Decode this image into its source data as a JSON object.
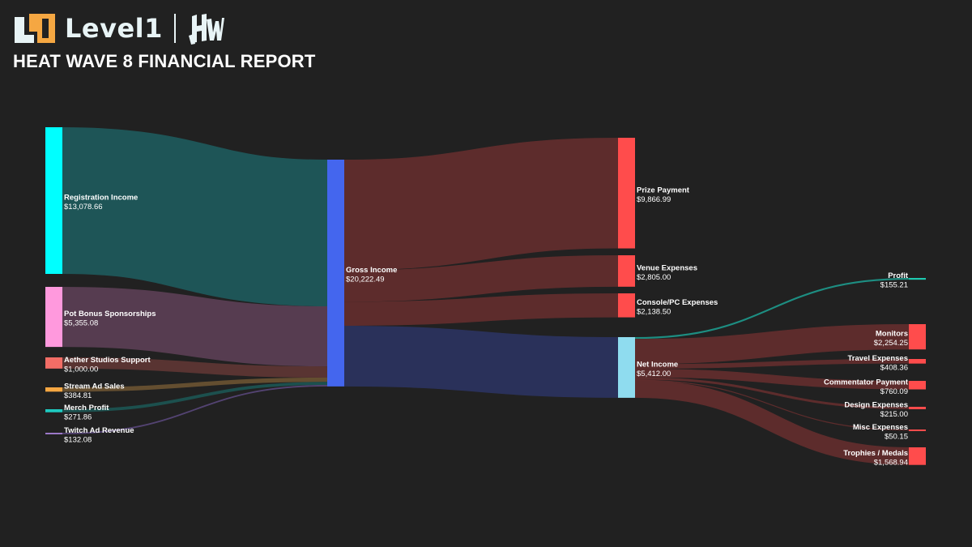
{
  "header": {
    "brand_name": "Level1",
    "partner_logo": "hw-logo",
    "title": "HEAT WAVE 8 FINANCIAL REPORT"
  },
  "chart_data": {
    "type": "sankey",
    "title": "HEAT WAVE 8 FINANCIAL REPORT",
    "currency": "$",
    "nodes": [
      {
        "id": "registration",
        "name": "Registration Income",
        "value": "$13,078.66",
        "amount": 13078.66,
        "color": "#00ffff",
        "column": 0
      },
      {
        "id": "pot_bonus",
        "name": "Pot Bonus Sponsorships",
        "value": "$5,355.08",
        "amount": 5355.08,
        "color": "#ff99dd",
        "column": 0
      },
      {
        "id": "aether",
        "name": "Aether Studios Support",
        "value": "$1,000.00",
        "amount": 1000.0,
        "color": "#f26d66",
        "column": 0
      },
      {
        "id": "stream_ad",
        "name": "Stream Ad Sales",
        "value": "$384.81",
        "amount": 384.81,
        "color": "#f5a742",
        "column": 0
      },
      {
        "id": "merch",
        "name": "Merch Profit",
        "value": "$271.86",
        "amount": 271.86,
        "color": "#1ec9c0",
        "column": 0
      },
      {
        "id": "twitch_ad",
        "name": "Twitch Ad Revenue",
        "value": "$132.08",
        "amount": 132.08,
        "color": "#9b78c8",
        "column": 0
      },
      {
        "id": "gross",
        "name": "Gross Income",
        "value": "$20,222.49",
        "amount": 20222.49,
        "color": "#4466ee",
        "column": 1
      },
      {
        "id": "prize",
        "name": "Prize Payment",
        "value": "$9,866.99",
        "amount": 9866.99,
        "color": "#ff4c4c",
        "column": 2
      },
      {
        "id": "venue",
        "name": "Venue Expenses",
        "value": "$2,805.00",
        "amount": 2805.0,
        "color": "#ff4c4c",
        "column": 2
      },
      {
        "id": "console",
        "name": "Console/PC Expenses",
        "value": "$2,138.50",
        "amount": 2138.5,
        "color": "#ff4c4c",
        "column": 2
      },
      {
        "id": "net",
        "name": "Net Income",
        "value": "$5,412.00",
        "amount": 5412.0,
        "color": "#8fdcef",
        "column": 2
      },
      {
        "id": "profit",
        "name": "Profit",
        "value": "$155.21",
        "amount": 155.21,
        "color": "#1ec9b0",
        "column": 3
      },
      {
        "id": "monitors",
        "name": "Monitors",
        "value": "$2,254.25",
        "amount": 2254.25,
        "color": "#ff4c4c",
        "column": 3
      },
      {
        "id": "travel",
        "name": "Travel Expenses",
        "value": "$408.36",
        "amount": 408.36,
        "color": "#ff4c4c",
        "column": 3
      },
      {
        "id": "commentator",
        "name": "Commentator Payment",
        "value": "$760.09",
        "amount": 760.09,
        "color": "#ff4c4c",
        "column": 3
      },
      {
        "id": "design",
        "name": "Design Expenses",
        "value": "$215.00",
        "amount": 215.0,
        "color": "#ff4c4c",
        "column": 3
      },
      {
        "id": "misc",
        "name": "Misc Expenses",
        "value": "$50.15",
        "amount": 50.15,
        "color": "#ff4c4c",
        "column": 3
      },
      {
        "id": "trophies",
        "name": "Trophies / Medals",
        "value": "$1,568.94",
        "amount": 1568.94,
        "color": "#ff4c4c",
        "column": 3
      }
    ],
    "links": [
      {
        "source": "registration",
        "target": "gross",
        "value": 13078.66
      },
      {
        "source": "pot_bonus",
        "target": "gross",
        "value": 5355.08
      },
      {
        "source": "aether",
        "target": "gross",
        "value": 1000.0
      },
      {
        "source": "stream_ad",
        "target": "gross",
        "value": 384.81
      },
      {
        "source": "merch",
        "target": "gross",
        "value": 271.86
      },
      {
        "source": "twitch_ad",
        "target": "gross",
        "value": 132.08
      },
      {
        "source": "gross",
        "target": "prize",
        "value": 9866.99
      },
      {
        "source": "gross",
        "target": "venue",
        "value": 2805.0
      },
      {
        "source": "gross",
        "target": "console",
        "value": 2138.5
      },
      {
        "source": "gross",
        "target": "net",
        "value": 5412.0
      },
      {
        "source": "net",
        "target": "profit",
        "value": 155.21
      },
      {
        "source": "net",
        "target": "monitors",
        "value": 2254.25
      },
      {
        "source": "net",
        "target": "travel",
        "value": 408.36
      },
      {
        "source": "net",
        "target": "commentator",
        "value": 760.09
      },
      {
        "source": "net",
        "target": "design",
        "value": 215.0
      },
      {
        "source": "net",
        "target": "misc",
        "value": 50.15
      },
      {
        "source": "net",
        "target": "trophies",
        "value": 1568.94
      }
    ]
  }
}
